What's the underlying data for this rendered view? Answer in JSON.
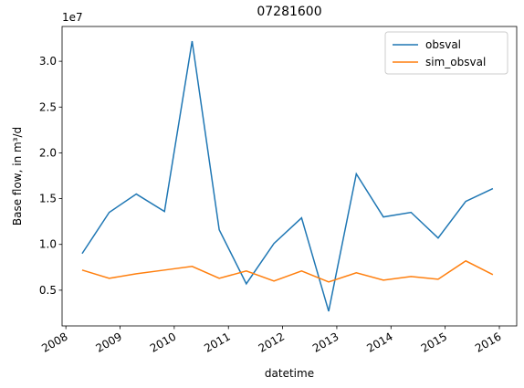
{
  "chart_data": {
    "type": "line",
    "title": "07281600",
    "x_label": "datetime",
    "y_label": "Base flow, in m³/d",
    "y_offset_label": "1e7",
    "x": [
      2008.3,
      2008.8,
      2009.3,
      2009.82,
      2010.33,
      2010.83,
      2011.33,
      2011.84,
      2012.35,
      2012.85,
      2013.36,
      2013.86,
      2014.37,
      2014.87,
      2015.38,
      2015.88
    ],
    "series": [
      {
        "name": "obsval",
        "color": "#1f77b4",
        "values": [
          0.9,
          1.35,
          1.55,
          1.36,
          3.22,
          1.16,
          0.57,
          1.01,
          1.29,
          0.27,
          1.77,
          1.3,
          1.35,
          1.07,
          1.47,
          1.61
        ]
      },
      {
        "name": "sim_obsval",
        "color": "#ff7f0e",
        "values": [
          0.72,
          0.63,
          0.68,
          0.72,
          0.76,
          0.63,
          0.71,
          0.6,
          0.71,
          0.59,
          0.69,
          0.61,
          0.65,
          0.62,
          0.82,
          0.67
        ]
      }
    ],
    "xlim": [
      2007.93,
      2016.32
    ],
    "xticks": [
      2008,
      2009,
      2010,
      2011,
      2012,
      2013,
      2014,
      2015,
      2016
    ],
    "ylim": [
      0.11,
      3.38
    ],
    "yticks": [
      0.5,
      {
        "value": 1,
        "label": "1.0"
      },
      1.5,
      {
        "value": 2,
        "label": "2.0"
      },
      2.5,
      {
        "value": 3,
        "label": "3.0"
      }
    ],
    "grid": false,
    "legend": "upper right"
  }
}
